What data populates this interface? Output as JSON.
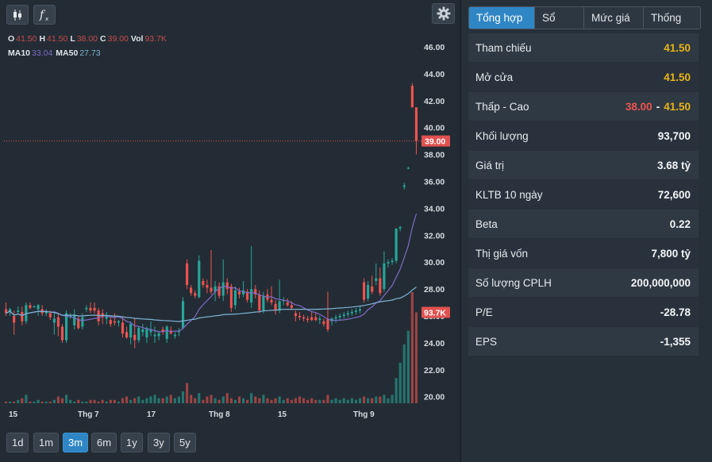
{
  "toolbar": {
    "candles_icon": "candlestick-icon",
    "fx_icon": "function-icon",
    "settings_icon": "gear-icon"
  },
  "legend": {
    "o_label": "O",
    "o_value": "41.50",
    "h_label": "H",
    "h_value": "41.50",
    "l_label": "L",
    "l_value": "38.00",
    "c_label": "C",
    "c_value": "39.00",
    "vol_label": "Vol",
    "vol_value": "93.7K",
    "ma10_label": "MA10",
    "ma10_value": "33.04",
    "ma50_label": "MA50",
    "ma50_value": "27.73"
  },
  "ranges": [
    {
      "label": "1d",
      "active": false
    },
    {
      "label": "1m",
      "active": false
    },
    {
      "label": "3m",
      "active": true
    },
    {
      "label": "6m",
      "active": false
    },
    {
      "label": "1y",
      "active": false
    },
    {
      "label": "3y",
      "active": false
    },
    {
      "label": "5y",
      "active": false
    }
  ],
  "tabs": [
    {
      "label": "Tổng hợp",
      "active": true
    },
    {
      "label": "Sổ lệnh",
      "active": false
    },
    {
      "label": "Mức giá",
      "active": false
    },
    {
      "label": "Thống kê",
      "active": false
    }
  ],
  "stats": [
    {
      "label": "Tham chiếu",
      "value": "41.50",
      "color": "yellow"
    },
    {
      "label": "Mở cửa",
      "value": "41.50",
      "color": "yellow"
    },
    {
      "label": "Thấp - Cao",
      "value_low": "38.00",
      "sep": "-",
      "value_high": "41.50",
      "color": "mixed"
    },
    {
      "label": "Khối lượng",
      "value": "93,700",
      "color": "white"
    },
    {
      "label": "Giá trị",
      "value": "3.68 tỷ",
      "color": "white"
    },
    {
      "label": "KLTB 10 ngày",
      "value": "72,600",
      "color": "white"
    },
    {
      "label": "Beta",
      "value": "0.22",
      "color": "white"
    },
    {
      "label": "Thị giá vốn",
      "value": "7,800 tỷ",
      "color": "white"
    },
    {
      "label": "Số lượng CPLH",
      "value": "200,000,000",
      "color": "white"
    },
    {
      "label": "P/E",
      "value": "-28.78",
      "color": "white"
    },
    {
      "label": "EPS",
      "value": "-1,355",
      "color": "white"
    }
  ],
  "colors": {
    "up": "#26a69a",
    "down": "#ef5350",
    "ma10": "#7f6bc8",
    "ma50": "#7fb4d6",
    "yellow": "#e8b417",
    "accent": "#2f86c5"
  },
  "chart_data": {
    "type": "candlestick",
    "y_ticks": [
      "46.00",
      "44.00",
      "42.00",
      "40.00",
      "38.00",
      "36.00",
      "34.00",
      "32.00",
      "30.00",
      "28.00",
      "26.00",
      "24.00",
      "22.00",
      "20.00"
    ],
    "ylim": [
      19.5,
      47
    ],
    "x_ticks": [
      "15",
      "Thg 7",
      "17",
      "Thg 8",
      "15",
      "Thg 9"
    ],
    "last_price_label": "39.00",
    "last_price": 39.0,
    "last_volume_label": "93.7K",
    "candles": [
      {
        "o": 26.5,
        "h": 27.0,
        "l": 26.0,
        "c": 26.2,
        "v": 1
      },
      {
        "o": 26.3,
        "h": 26.6,
        "l": 26.0,
        "c": 26.5,
        "v": 1
      },
      {
        "o": 26.0,
        "h": 26.4,
        "l": 24.6,
        "c": 25.5,
        "v": 1
      },
      {
        "o": 26.3,
        "h": 26.7,
        "l": 26.2,
        "c": 26.4,
        "v": 2
      },
      {
        "o": 26.3,
        "h": 26.7,
        "l": 25.3,
        "c": 25.6,
        "v": 3
      },
      {
        "o": 25.6,
        "h": 27.0,
        "l": 25.4,
        "c": 26.8,
        "v": 5
      },
      {
        "o": 26.8,
        "h": 27.0,
        "l": 26.5,
        "c": 26.6,
        "v": 1
      },
      {
        "o": 26.7,
        "h": 26.8,
        "l": 26.6,
        "c": 26.7,
        "v": 1
      },
      {
        "o": 26.5,
        "h": 26.9,
        "l": 26.0,
        "c": 26.8,
        "v": 2
      },
      {
        "o": 26.5,
        "h": 26.8,
        "l": 26.0,
        "c": 26.2,
        "v": 1
      },
      {
        "o": 26.2,
        "h": 26.5,
        "l": 26.0,
        "c": 26.3,
        "v": 1
      },
      {
        "o": 26.2,
        "h": 26.4,
        "l": 25.7,
        "c": 25.9,
        "v": 1
      },
      {
        "o": 25.5,
        "h": 26.3,
        "l": 24.6,
        "c": 25.8,
        "v": 2
      },
      {
        "o": 25.9,
        "h": 26.2,
        "l": 24.5,
        "c": 25.2,
        "v": 4
      },
      {
        "o": 25.2,
        "h": 25.4,
        "l": 24.0,
        "c": 24.2,
        "v": 3
      },
      {
        "o": 24.2,
        "h": 26.4,
        "l": 24.0,
        "c": 26.2,
        "v": 5
      },
      {
        "o": 26.0,
        "h": 26.2,
        "l": 25.8,
        "c": 26.0,
        "v": 2
      },
      {
        "o": 25.3,
        "h": 26.5,
        "l": 25.0,
        "c": 26.1,
        "v": 1
      },
      {
        "o": 25.8,
        "h": 26.0,
        "l": 25.0,
        "c": 25.1,
        "v": 2
      },
      {
        "o": 25.2,
        "h": 26.2,
        "l": 25.0,
        "c": 25.9,
        "v": 1
      },
      {
        "o": 26.5,
        "h": 26.8,
        "l": 26.3,
        "c": 26.6,
        "v": 1
      },
      {
        "o": 26.6,
        "h": 27.0,
        "l": 26.2,
        "c": 26.4,
        "v": 2
      },
      {
        "o": 26.6,
        "h": 27.0,
        "l": 26.2,
        "c": 26.4,
        "v": 2
      },
      {
        "o": 26.4,
        "h": 26.6,
        "l": 25.3,
        "c": 25.6,
        "v": 1
      },
      {
        "o": 26.2,
        "h": 26.5,
        "l": 25.4,
        "c": 25.9,
        "v": 2
      },
      {
        "o": 25.8,
        "h": 26.3,
        "l": 25.4,
        "c": 26.0,
        "v": 1
      },
      {
        "o": 25.7,
        "h": 26.0,
        "l": 25.2,
        "c": 25.4,
        "v": 2
      },
      {
        "o": 25.6,
        "h": 26.2,
        "l": 25.3,
        "c": 25.5,
        "v": 2
      },
      {
        "o": 25.5,
        "h": 25.7,
        "l": 25.2,
        "c": 25.6,
        "v": 1
      },
      {
        "o": 25.5,
        "h": 25.9,
        "l": 24.4,
        "c": 24.7,
        "v": 3
      },
      {
        "o": 24.8,
        "h": 25.2,
        "l": 24.3,
        "c": 24.4,
        "v": 4
      },
      {
        "o": 24.4,
        "h": 25.6,
        "l": 23.9,
        "c": 25.4,
        "v": 2
      },
      {
        "o": 24.6,
        "h": 25.8,
        "l": 23.6,
        "c": 24.2,
        "v": 3
      },
      {
        "o": 24.2,
        "h": 25.2,
        "l": 24.0,
        "c": 25.1,
        "v": 4
      },
      {
        "o": 24.8,
        "h": 25.4,
        "l": 24.5,
        "c": 25.0,
        "v": 2
      },
      {
        "o": 24.4,
        "h": 25.2,
        "l": 24.0,
        "c": 25.1,
        "v": 3
      },
      {
        "o": 24.8,
        "h": 25.6,
        "l": 24.5,
        "c": 25.0,
        "v": 4
      },
      {
        "o": 24.5,
        "h": 25.2,
        "l": 24.0,
        "c": 24.6,
        "v": 5
      },
      {
        "o": 24.5,
        "h": 24.9,
        "l": 24.2,
        "c": 24.7,
        "v": 3
      },
      {
        "o": 25.0,
        "h": 25.2,
        "l": 24.6,
        "c": 24.8,
        "v": 3
      },
      {
        "o": 24.3,
        "h": 25.3,
        "l": 24.0,
        "c": 25.2,
        "v": 4
      },
      {
        "o": 24.9,
        "h": 25.2,
        "l": 24.6,
        "c": 24.7,
        "v": 5
      },
      {
        "o": 24.5,
        "h": 24.8,
        "l": 24.3,
        "c": 24.6,
        "v": 3
      },
      {
        "o": 24.8,
        "h": 25.1,
        "l": 24.5,
        "c": 24.9,
        "v": 4
      },
      {
        "o": 25.1,
        "h": 27.4,
        "l": 25.0,
        "c": 27.1,
        "v": 7
      },
      {
        "o": 29.9,
        "h": 30.2,
        "l": 28.0,
        "c": 28.3,
        "v": 12
      },
      {
        "o": 28.1,
        "h": 28.3,
        "l": 27.5,
        "c": 27.7,
        "v": 5
      },
      {
        "o": 27.7,
        "h": 27.9,
        "l": 27.3,
        "c": 27.5,
        "v": 3
      },
      {
        "o": 27.4,
        "h": 30.5,
        "l": 27.3,
        "c": 30.1,
        "v": 6
      },
      {
        "o": 28.6,
        "h": 28.8,
        "l": 28.1,
        "c": 28.3,
        "v": 2
      },
      {
        "o": 28.3,
        "h": 28.7,
        "l": 27.7,
        "c": 28.1,
        "v": 4
      },
      {
        "o": 28.1,
        "h": 30.9,
        "l": 27.6,
        "c": 27.8,
        "v": 5
      },
      {
        "o": 27.8,
        "h": 28.6,
        "l": 27.1,
        "c": 28.2,
        "v": 3
      },
      {
        "o": 28.2,
        "h": 28.5,
        "l": 27.3,
        "c": 27.5,
        "v": 2
      },
      {
        "o": 27.5,
        "h": 30.2,
        "l": 27.1,
        "c": 28.5,
        "v": 4
      },
      {
        "o": 28.5,
        "h": 28.8,
        "l": 27.6,
        "c": 28.0,
        "v": 6
      },
      {
        "o": 28.2,
        "h": 28.4,
        "l": 26.3,
        "c": 26.6,
        "v": 3
      },
      {
        "o": 26.8,
        "h": 28.2,
        "l": 26.5,
        "c": 27.9,
        "v": 2
      },
      {
        "o": 27.8,
        "h": 28.1,
        "l": 27.3,
        "c": 27.6,
        "v": 4
      },
      {
        "o": 27.6,
        "h": 28.6,
        "l": 27.4,
        "c": 27.9,
        "v": 3
      },
      {
        "o": 27.8,
        "h": 28.0,
        "l": 27.0,
        "c": 27.2,
        "v": 2
      },
      {
        "o": 27.0,
        "h": 31.2,
        "l": 26.6,
        "c": 28.0,
        "v": 6
      },
      {
        "o": 28.0,
        "h": 28.3,
        "l": 27.3,
        "c": 27.6,
        "v": 4
      },
      {
        "o": 27.6,
        "h": 27.9,
        "l": 26.2,
        "c": 26.4,
        "v": 3
      },
      {
        "o": 26.4,
        "h": 27.8,
        "l": 26.2,
        "c": 27.5,
        "v": 5
      },
      {
        "o": 27.6,
        "h": 28.0,
        "l": 27.0,
        "c": 27.2,
        "v": 3
      },
      {
        "o": 27.2,
        "h": 28.2,
        "l": 26.8,
        "c": 27.0,
        "v": 2
      },
      {
        "o": 26.9,
        "h": 27.2,
        "l": 26.1,
        "c": 26.4,
        "v": 3
      },
      {
        "o": 26.4,
        "h": 28.7,
        "l": 26.2,
        "c": 27.1,
        "v": 4
      },
      {
        "o": 27.1,
        "h": 27.4,
        "l": 26.8,
        "c": 27.2,
        "v": 2
      },
      {
        "o": 27.0,
        "h": 27.3,
        "l": 26.7,
        "c": 26.8,
        "v": 3
      },
      {
        "o": 26.8,
        "h": 27.1,
        "l": 26.5,
        "c": 26.6,
        "v": 2
      },
      {
        "o": 26.2,
        "h": 26.4,
        "l": 25.6,
        "c": 26.0,
        "v": 3
      },
      {
        "o": 26.0,
        "h": 26.3,
        "l": 25.7,
        "c": 25.9,
        "v": 4
      },
      {
        "o": 25.9,
        "h": 26.1,
        "l": 25.6,
        "c": 25.8,
        "v": 3
      },
      {
        "o": 25.8,
        "h": 26.0,
        "l": 25.5,
        "c": 25.7,
        "v": 2
      },
      {
        "o": 25.9,
        "h": 26.3,
        "l": 25.6,
        "c": 25.7,
        "v": 3
      },
      {
        "o": 25.9,
        "h": 26.2,
        "l": 25.6,
        "c": 25.7,
        "v": 2
      },
      {
        "o": 25.7,
        "h": 26.0,
        "l": 25.4,
        "c": 25.8,
        "v": 2
      },
      {
        "o": 25.6,
        "h": 25.8,
        "l": 25.2,
        "c": 25.4,
        "v": 2
      },
      {
        "o": 25.8,
        "h": 27.8,
        "l": 24.8,
        "c": 25.0,
        "v": 5
      },
      {
        "o": 25.6,
        "h": 25.9,
        "l": 25.3,
        "c": 25.8,
        "v": 2
      },
      {
        "o": 25.8,
        "h": 26.1,
        "l": 25.5,
        "c": 25.9,
        "v": 3
      },
      {
        "o": 25.9,
        "h": 26.2,
        "l": 25.7,
        "c": 26.0,
        "v": 2
      },
      {
        "o": 26.0,
        "h": 26.3,
        "l": 25.8,
        "c": 26.1,
        "v": 3
      },
      {
        "o": 26.1,
        "h": 26.4,
        "l": 25.9,
        "c": 26.2,
        "v": 2
      },
      {
        "o": 26.2,
        "h": 26.5,
        "l": 26.0,
        "c": 26.3,
        "v": 3
      },
      {
        "o": 26.3,
        "h": 26.6,
        "l": 26.1,
        "c": 26.4,
        "v": 2
      },
      {
        "o": 26.4,
        "h": 26.7,
        "l": 26.2,
        "c": 26.5,
        "v": 3
      },
      {
        "o": 28.5,
        "h": 28.8,
        "l": 27.0,
        "c": 27.2,
        "v": 4
      },
      {
        "o": 27.3,
        "h": 28.6,
        "l": 27.1,
        "c": 28.3,
        "v": 3
      },
      {
        "o": 28.2,
        "h": 29.0,
        "l": 27.6,
        "c": 27.8,
        "v": 3
      },
      {
        "o": 28.6,
        "h": 29.9,
        "l": 28.3,
        "c": 28.8,
        "v": 4
      },
      {
        "o": 28.8,
        "h": 29.6,
        "l": 27.5,
        "c": 27.7,
        "v": 4
      },
      {
        "o": 28.0,
        "h": 30.8,
        "l": 27.8,
        "c": 29.9,
        "v": 5
      },
      {
        "o": 29.9,
        "h": 30.2,
        "l": 29.6,
        "c": 30.0,
        "v": 3
      },
      {
        "o": 30.0,
        "h": 30.3,
        "l": 29.8,
        "c": 30.1,
        "v": 5
      },
      {
        "o": 30.1,
        "h": 32.5,
        "l": 29.9,
        "c": 32.5,
        "v": 15
      },
      {
        "o": 32.5,
        "h": 32.7,
        "l": 32.3,
        "c": 32.6,
        "v": 24
      },
      {
        "o": 35.6,
        "h": 35.9,
        "l": 35.4,
        "c": 35.7,
        "v": 35
      },
      {
        "o": 37.0,
        "h": 37.1,
        "l": 36.9,
        "c": 37.0,
        "v": 43
      },
      {
        "o": 43.1,
        "h": 43.3,
        "l": 41.5,
        "c": 41.5,
        "v": 66
      },
      {
        "o": 41.5,
        "h": 41.5,
        "l": 38.0,
        "c": 39.0,
        "v": 54
      }
    ]
  }
}
